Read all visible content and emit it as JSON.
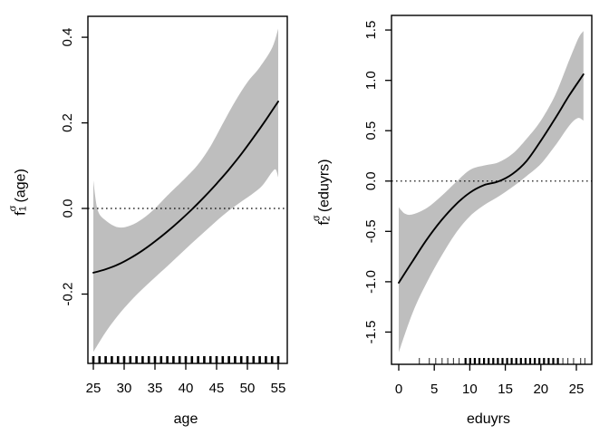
{
  "figure": {
    "background_color": "#ffffff",
    "box_color": "#000000"
  },
  "chart_data": [
    {
      "type": "line",
      "panel": "left",
      "title": "",
      "xlabel": "age",
      "ylabel": {
        "base": "f",
        "sub": "1",
        "sup": "σ",
        "arg": "(age)"
      },
      "xlim": [
        24.12,
        56.47
      ],
      "ylim": [
        -0.362,
        0.449
      ],
      "grid": false,
      "legend": null,
      "zero_line": 0.0,
      "colors": {
        "band": "#bebebe",
        "line": "#000000",
        "dotted": "#000000"
      },
      "xticks": {
        "values": [
          25,
          30,
          35,
          40,
          45,
          50,
          55
        ],
        "labels": [
          "25",
          "30",
          "35",
          "40",
          "45",
          "50",
          "55"
        ]
      },
      "yticks": {
        "values": [
          -0.2,
          0.0,
          0.2,
          0.4
        ],
        "labels": [
          "-0.2",
          "0.0",
          "0.2",
          "0.4"
        ]
      },
      "series": {
        "fit_x": [
          25,
          27,
          29,
          31,
          33,
          35,
          37,
          39,
          41,
          43,
          45,
          47,
          49,
          51,
          53,
          55
        ],
        "fit_y": [
          -0.15,
          -0.142,
          -0.131,
          -0.116,
          -0.098,
          -0.077,
          -0.054,
          -0.029,
          -0.002,
          0.027,
          0.058,
          0.091,
          0.127,
          0.166,
          0.207,
          0.25
        ],
        "upper_x": [
          25,
          25.7,
          27,
          29,
          31,
          33,
          35,
          37,
          39,
          40,
          42,
          44,
          46,
          48,
          50,
          52,
          54,
          55
        ],
        "upper_y": [
          0.065,
          -0.003,
          -0.028,
          -0.044,
          -0.04,
          -0.024,
          0.0,
          0.03,
          0.058,
          0.072,
          0.103,
          0.145,
          0.198,
          0.25,
          0.295,
          0.33,
          0.375,
          0.42
        ],
        "lower_x": [
          25,
          27,
          29,
          31,
          33,
          35,
          37,
          39,
          41,
          43,
          45,
          47,
          49,
          51,
          52.5,
          54,
          54.6,
          55
        ],
        "lower_y": [
          -0.335,
          -0.289,
          -0.25,
          -0.217,
          -0.188,
          -0.161,
          -0.135,
          -0.108,
          -0.081,
          -0.055,
          -0.029,
          -0.005,
          0.016,
          0.036,
          0.055,
          0.085,
          0.091,
          0.073
        ]
      },
      "rug": {
        "major": [
          25,
          26,
          27,
          28,
          29,
          30,
          31,
          32,
          33,
          34,
          35,
          36,
          37,
          38,
          39,
          40,
          41,
          42,
          43,
          44,
          45,
          46,
          47,
          48,
          49,
          50,
          51,
          52,
          53,
          54,
          55
        ],
        "minor": []
      }
    },
    {
      "type": "line",
      "panel": "right",
      "title": "",
      "xlabel": "eduyrs",
      "ylabel": {
        "base": "f",
        "sub": "2",
        "sup": "σ",
        "arg": "(eduyrs)"
      },
      "xlim": [
        -1.02,
        27.17
      ],
      "ylim": [
        -1.82,
        1.645
      ],
      "grid": false,
      "legend": null,
      "zero_line": 0.0,
      "colors": {
        "band": "#bebebe",
        "line": "#000000",
        "dotted": "#000000"
      },
      "xticks": {
        "values": [
          0,
          5,
          10,
          15,
          20,
          25
        ],
        "labels": [
          "0",
          "5",
          "10",
          "15",
          "20",
          "25"
        ]
      },
      "yticks": {
        "values": [
          -1.5,
          -1.0,
          -0.5,
          0.0,
          0.5,
          1.0,
          1.5
        ],
        "labels": [
          "-1.5",
          "-1.0",
          "-0.5",
          "0.0",
          "0.5",
          "1.0",
          "1.5"
        ]
      },
      "series": {
        "fit_x": [
          0,
          2,
          4,
          6,
          8,
          10,
          12,
          14,
          16,
          18,
          20,
          22,
          24,
          26
        ],
        "fit_y": [
          -1.01,
          -0.79,
          -0.575,
          -0.39,
          -0.235,
          -0.115,
          -0.04,
          -0.005,
          0.07,
          0.2,
          0.4,
          0.62,
          0.85,
          1.06
        ],
        "upper_x": [
          0,
          0.9,
          2,
          4,
          6,
          8,
          10,
          12,
          14,
          16,
          18,
          20,
          22,
          24,
          25.3,
          26
        ],
        "upper_y": [
          -0.26,
          -0.325,
          -0.33,
          -0.265,
          -0.15,
          -0.015,
          0.11,
          0.155,
          0.185,
          0.27,
          0.42,
          0.6,
          0.85,
          1.2,
          1.42,
          1.49
        ],
        "lower_x": [
          0,
          2,
          4,
          6,
          8,
          10,
          12,
          14,
          16,
          18,
          20,
          22,
          24,
          25.2,
          26
        ],
        "lower_y": [
          -1.7,
          -1.3,
          -1.0,
          -0.745,
          -0.52,
          -0.35,
          -0.24,
          -0.155,
          -0.06,
          0.05,
          0.17,
          0.35,
          0.55,
          0.625,
          0.6
        ]
      },
      "rug": {
        "major": [
          9.4,
          10.05,
          10.7,
          11.35,
          12.0,
          12.65,
          13.3,
          13.95,
          14.6,
          15.25,
          15.9,
          16.55,
          17.2,
          17.85,
          18.5,
          19.15,
          19.8,
          20.45,
          21.1,
          21.75,
          22.4
        ],
        "minor": [
          2.9,
          4.3,
          5.2,
          6.1,
          6.9,
          7.7,
          8.5,
          23.1,
          23.8,
          24.6,
          25.6,
          26.2
        ]
      }
    }
  ]
}
